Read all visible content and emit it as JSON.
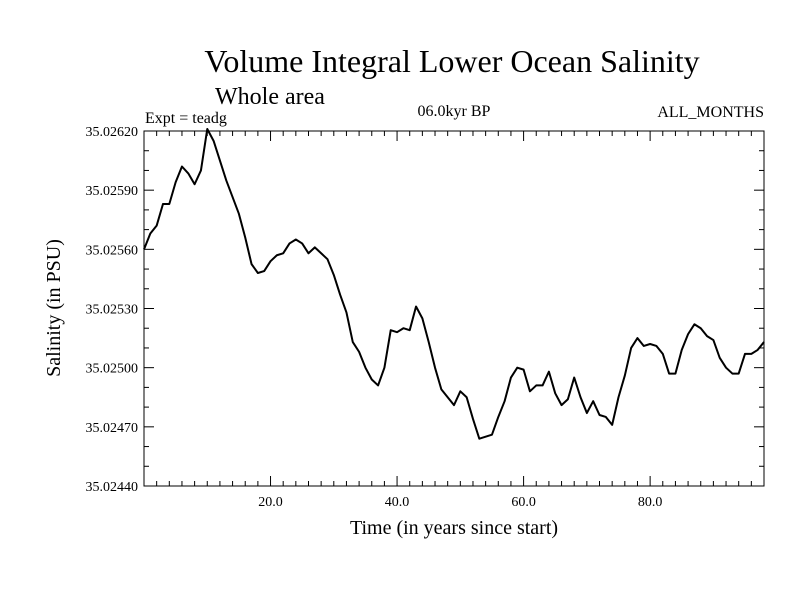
{
  "chart_data": {
    "type": "line",
    "title": "Volume Integral Lower Ocean Salinity",
    "subtitle": "Whole area",
    "annotations": {
      "left": "Expt = teadg",
      "center": "06.0kyr BP",
      "right": "ALL_MONTHS"
    },
    "xlabel": "Time (in years since start)",
    "ylabel": "Salinity (in PSU)",
    "xlim": [
      0,
      98
    ],
    "ylim": [
      35.0244,
      35.0262
    ],
    "x_ticks": [
      20,
      40,
      60,
      80
    ],
    "x_tick_labels": [
      "20.0",
      "40.0",
      "60.0",
      "80.0"
    ],
    "y_ticks": [
      35.0244,
      35.0247,
      35.025,
      35.0253,
      35.0256,
      35.0259,
      35.0262
    ],
    "y_tick_labels": [
      "35.02440",
      "35.02470",
      "35.02500",
      "35.02530",
      "35.02560",
      "35.02590",
      "35.02620"
    ],
    "grid": false,
    "series": [
      {
        "name": "Salinity",
        "color": "#000000",
        "x": [
          0,
          1,
          2,
          3,
          4,
          5,
          6,
          7,
          8,
          9,
          10,
          11,
          12,
          13,
          14,
          15,
          16,
          17,
          18,
          19,
          20,
          21,
          22,
          23,
          24,
          25,
          26,
          27,
          28,
          29,
          30,
          31,
          32,
          33,
          34,
          35,
          36,
          37,
          38,
          39,
          40,
          41,
          42,
          43,
          44,
          45,
          46,
          47,
          48,
          49,
          50,
          51,
          52,
          53,
          54,
          55,
          56,
          57,
          58,
          59,
          60,
          61,
          62,
          63,
          64,
          65,
          66,
          67,
          68,
          69,
          70,
          71,
          72,
          73,
          74,
          75,
          76,
          77,
          78,
          79,
          80,
          81,
          82,
          83,
          84,
          85,
          86,
          87,
          88,
          89,
          90,
          91,
          92,
          93,
          94,
          95,
          96,
          97,
          98
        ],
        "values": [
          35.0256,
          35.02568,
          35.02572,
          35.02583,
          35.02583,
          35.02594,
          35.02602,
          35.025985,
          35.02593,
          35.026,
          35.02621,
          35.02615,
          35.02605,
          35.02595,
          35.025865,
          35.02578,
          35.02566,
          35.025525,
          35.02548,
          35.02549,
          35.02554,
          35.02557,
          35.02558,
          35.02563,
          35.02565,
          35.02563,
          35.02558,
          35.02561,
          35.02558,
          35.02555,
          35.02547,
          35.02537,
          35.02528,
          35.02513,
          35.02508,
          35.025,
          35.02494,
          35.02491,
          35.025,
          35.02519,
          35.02518,
          35.0252,
          35.02519,
          35.02531,
          35.02525,
          35.02513,
          35.025,
          35.02489,
          35.02485,
          35.02481,
          35.02488,
          35.02485,
          35.02474,
          35.02464,
          35.02465,
          35.02466,
          35.02475,
          35.02483,
          35.02495,
          35.025,
          35.02499,
          35.02488,
          35.02491,
          35.02491,
          35.02498,
          35.02487,
          35.02481,
          35.02484,
          35.02495,
          35.02485,
          35.02477,
          35.02483,
          35.02476,
          35.02475,
          35.02471,
          35.02485,
          35.02496,
          35.0251,
          35.02515,
          35.02511,
          35.02512,
          35.02511,
          35.02507,
          35.02497,
          35.02497,
          35.02509,
          35.02517,
          35.02522,
          35.0252,
          35.02516,
          35.02514,
          35.02505,
          35.025,
          35.02497,
          35.02497,
          35.02507,
          35.02507,
          35.02509,
          35.02513
        ]
      }
    ]
  }
}
